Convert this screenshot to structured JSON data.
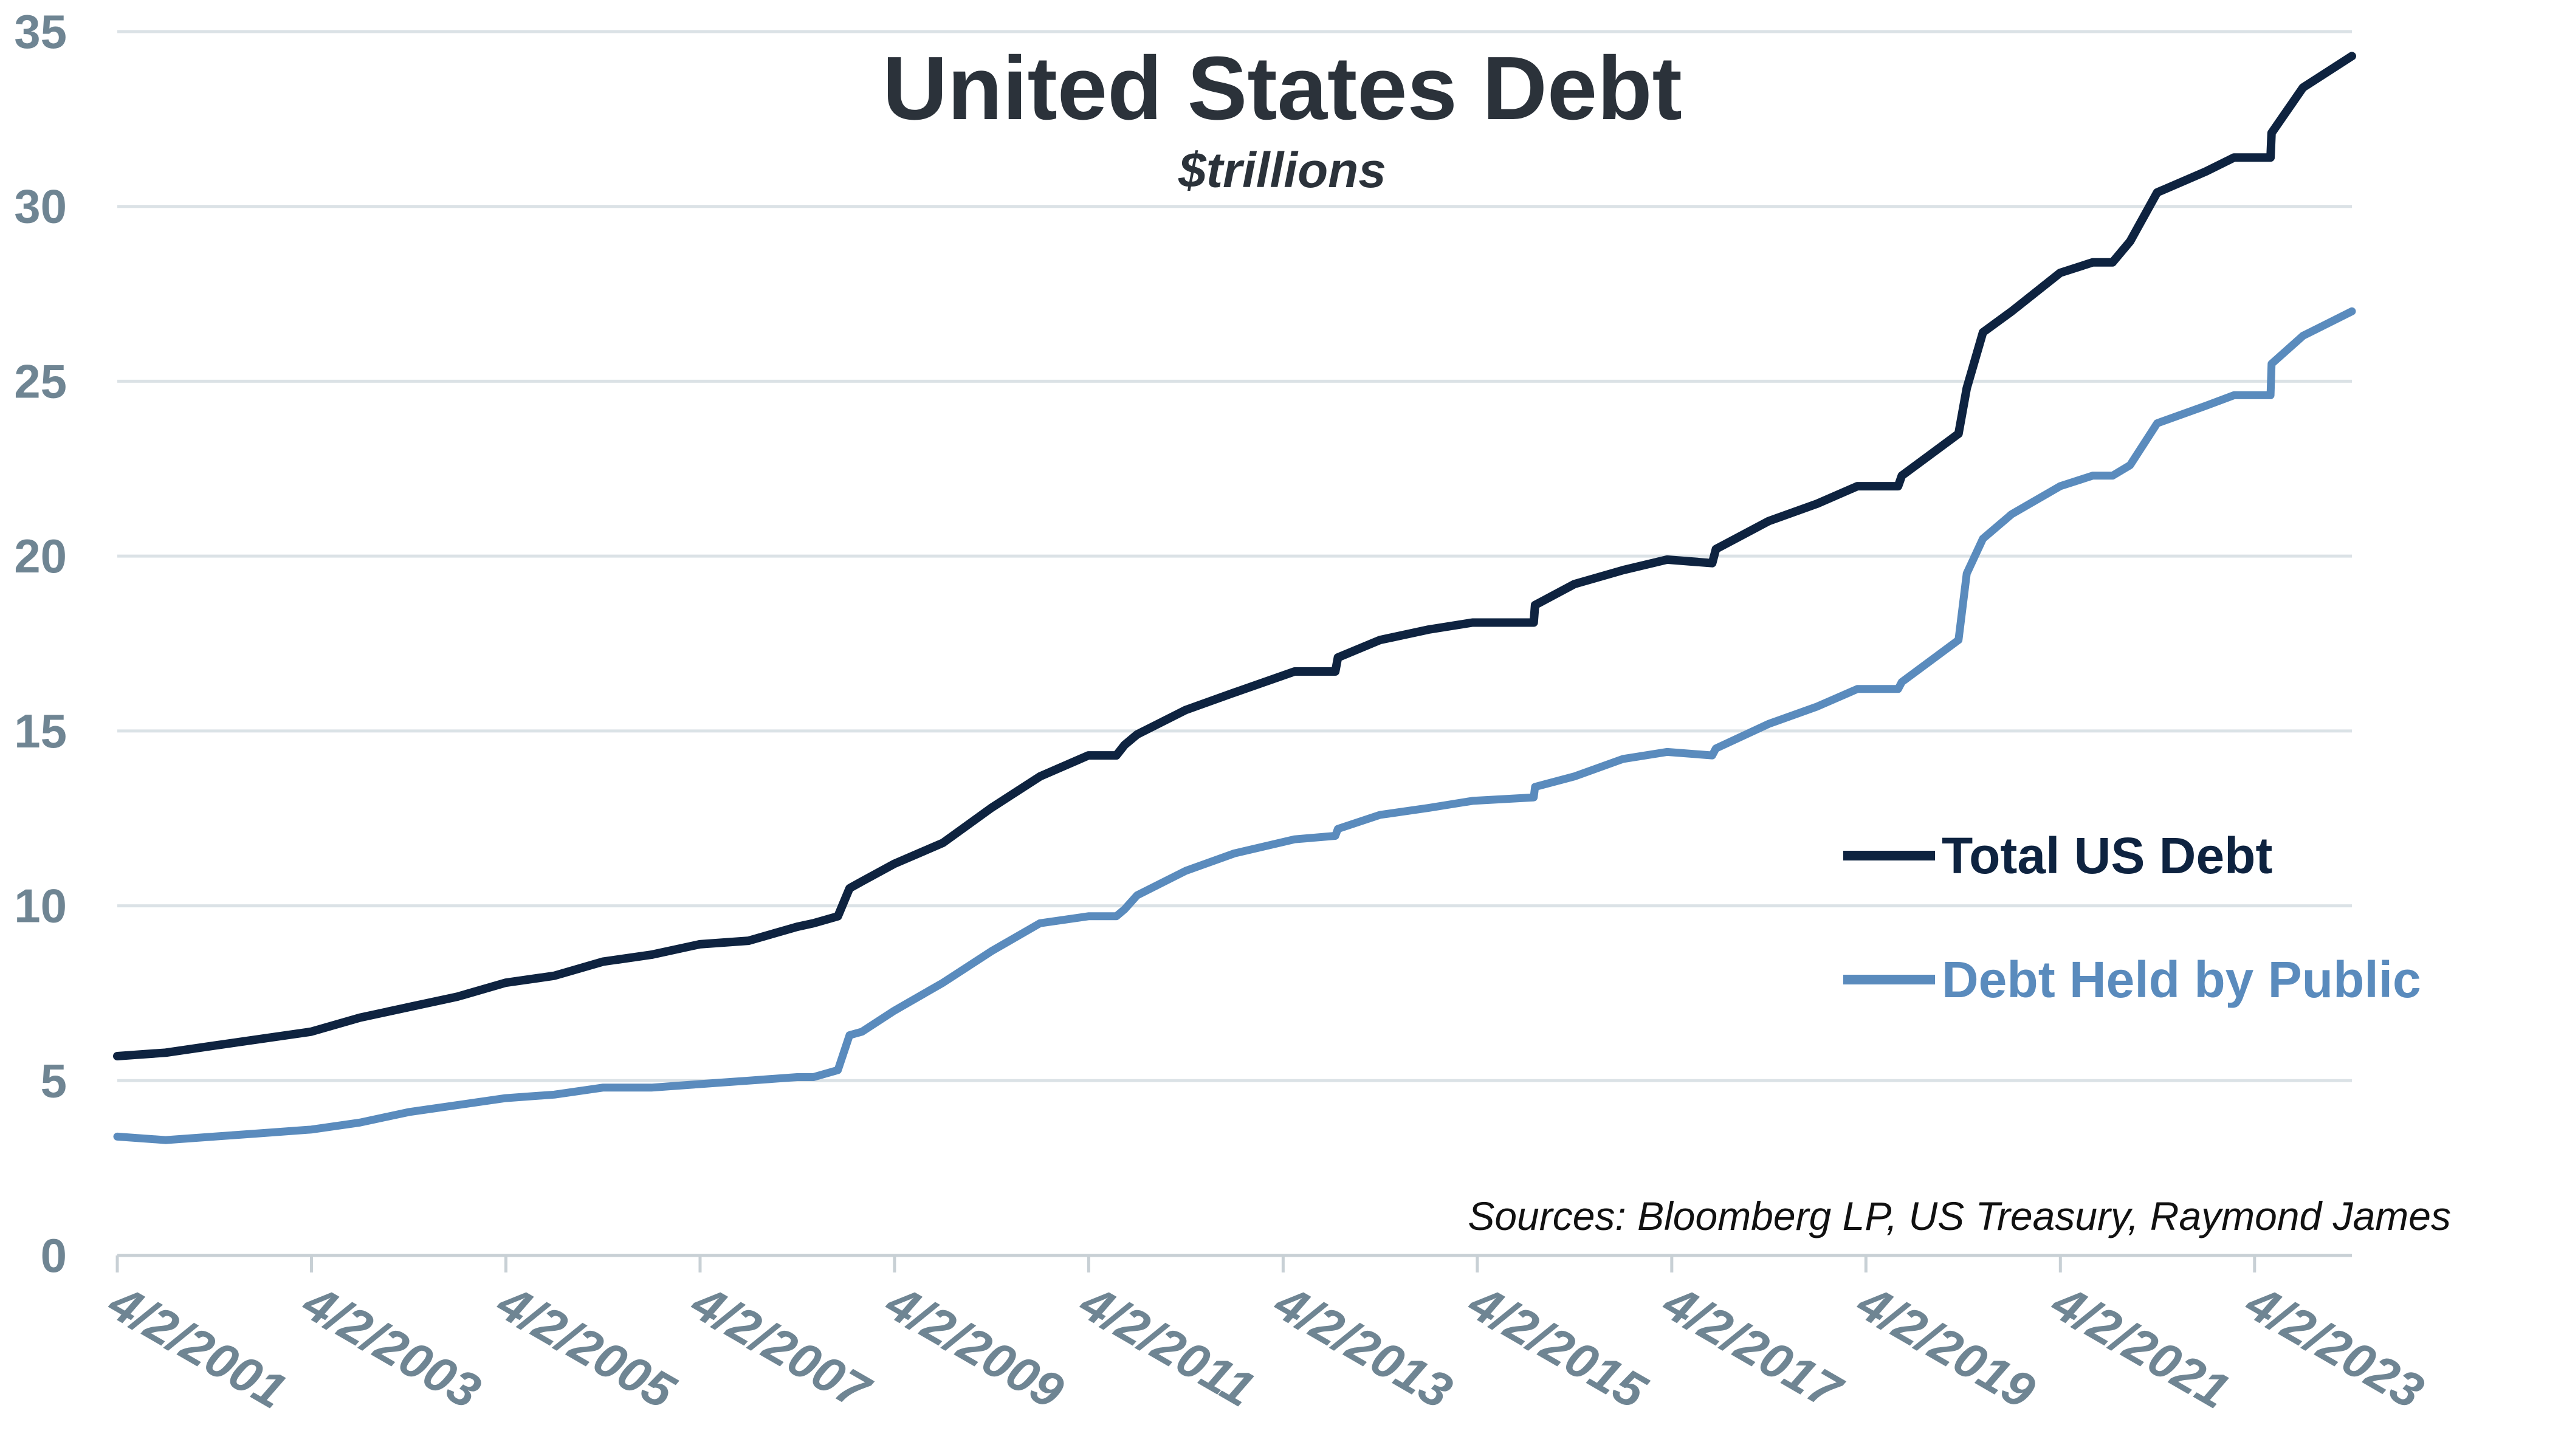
{
  "chart_data": {
    "type": "line",
    "title": "United States Debt",
    "subtitle": "$trillions",
    "xlabel": "",
    "ylabel": "",
    "ylim": [
      0,
      35
    ],
    "yticks": [
      "0",
      "5",
      "10",
      "15",
      "20",
      "25",
      "30",
      "35"
    ],
    "xlim": [
      "2001-04-02",
      "2024-04-02"
    ],
    "xticks": [
      "4/2/2001",
      "4/2/2003",
      "4/2/2005",
      "4/2/2007",
      "4/2/2009",
      "4/2/2011",
      "4/2/2013",
      "4/2/2015",
      "4/2/2017",
      "4/2/2019",
      "4/2/2021",
      "4/2/2023"
    ],
    "grid": "horizontal",
    "legend_position": "right",
    "source": "Sources: Bloomberg LP, US Treasury, Raymond James",
    "series": [
      {
        "name": "Total US Debt",
        "color": "#0e2340",
        "x": [
          "2001-04-02",
          "2001-10-01",
          "2002-04-01",
          "2002-10-01",
          "2003-04-01",
          "2003-10-01",
          "2004-04-01",
          "2004-10-01",
          "2005-04-01",
          "2005-10-01",
          "2006-04-01",
          "2006-10-01",
          "2007-04-01",
          "2007-10-01",
          "2008-04-01",
          "2008-06-01",
          "2008-09-01",
          "2008-10-15",
          "2008-12-01",
          "2009-04-01",
          "2009-10-01",
          "2010-04-01",
          "2010-10-01",
          "2011-04-01",
          "2011-07-15",
          "2011-08-15",
          "2011-10-01",
          "2012-04-01",
          "2012-10-01",
          "2013-05-15",
          "2013-10-15",
          "2013-10-25",
          "2014-04-01",
          "2014-10-01",
          "2015-03-15",
          "2015-10-31",
          "2015-11-05",
          "2016-04-01",
          "2016-10-01",
          "2017-03-15",
          "2017-09-01",
          "2017-09-15",
          "2018-04-01",
          "2018-10-01",
          "2019-03-01",
          "2019-08-01",
          "2019-08-15",
          "2020-03-15",
          "2020-04-15",
          "2020-06-15",
          "2020-10-01",
          "2021-04-01",
          "2021-08-01",
          "2021-10-15",
          "2021-12-20",
          "2022-04-01",
          "2022-10-01",
          "2023-01-15",
          "2023-06-01",
          "2023-06-05",
          "2023-10-01",
          "2024-04-02"
        ],
        "values": [
          5.7,
          5.8,
          6.0,
          6.2,
          6.4,
          6.8,
          7.1,
          7.4,
          7.8,
          8.0,
          8.4,
          8.6,
          8.9,
          9.0,
          9.4,
          9.5,
          9.7,
          10.5,
          10.7,
          11.2,
          11.8,
          12.8,
          13.7,
          14.3,
          14.3,
          14.6,
          14.9,
          15.6,
          16.1,
          16.7,
          16.7,
          17.1,
          17.6,
          17.9,
          18.1,
          18.1,
          18.6,
          19.2,
          19.6,
          19.9,
          19.8,
          20.2,
          21.0,
          21.5,
          22.0,
          22.0,
          22.3,
          23.5,
          24.8,
          26.4,
          27.0,
          28.1,
          28.4,
          28.4,
          29.0,
          30.4,
          31.0,
          31.4,
          31.4,
          32.1,
          33.4,
          34.3
        ]
      },
      {
        "name": "Debt Held by Public",
        "color": "#5a8bbd",
        "x": [
          "2001-04-02",
          "2001-10-01",
          "2002-04-01",
          "2002-10-01",
          "2003-04-01",
          "2003-10-01",
          "2004-04-01",
          "2004-10-01",
          "2005-04-01",
          "2005-10-01",
          "2006-04-01",
          "2006-10-01",
          "2007-04-01",
          "2007-10-01",
          "2008-04-01",
          "2008-06-01",
          "2008-09-01",
          "2008-10-15",
          "2008-12-01",
          "2009-04-01",
          "2009-10-01",
          "2010-04-01",
          "2010-10-01",
          "2011-04-01",
          "2011-07-15",
          "2011-08-15",
          "2011-10-01",
          "2012-04-01",
          "2012-10-01",
          "2013-05-15",
          "2013-10-15",
          "2013-10-25",
          "2014-04-01",
          "2014-10-01",
          "2015-03-15",
          "2015-10-31",
          "2015-11-05",
          "2016-04-01",
          "2016-10-01",
          "2017-03-15",
          "2017-09-01",
          "2017-09-15",
          "2018-04-01",
          "2018-10-01",
          "2019-03-01",
          "2019-08-01",
          "2019-08-15",
          "2020-03-15",
          "2020-04-15",
          "2020-06-15",
          "2020-10-01",
          "2021-04-01",
          "2021-08-01",
          "2021-10-15",
          "2021-12-20",
          "2022-04-01",
          "2022-10-01",
          "2023-01-15",
          "2023-06-01",
          "2023-06-05",
          "2023-10-01",
          "2024-04-02"
        ],
        "values": [
          3.4,
          3.3,
          3.4,
          3.5,
          3.6,
          3.8,
          4.1,
          4.3,
          4.5,
          4.6,
          4.8,
          4.8,
          4.9,
          5.0,
          5.1,
          5.1,
          5.3,
          6.3,
          6.4,
          7.0,
          7.8,
          8.7,
          9.5,
          9.7,
          9.7,
          9.9,
          10.3,
          11.0,
          11.5,
          11.9,
          12.0,
          12.2,
          12.6,
          12.8,
          13.0,
          13.1,
          13.4,
          13.7,
          14.2,
          14.4,
          14.3,
          14.5,
          15.2,
          15.7,
          16.2,
          16.2,
          16.4,
          17.6,
          19.5,
          20.5,
          21.2,
          22.0,
          22.3,
          22.3,
          22.6,
          23.8,
          24.3,
          24.6,
          24.6,
          25.5,
          26.3,
          27.0
        ]
      }
    ]
  }
}
